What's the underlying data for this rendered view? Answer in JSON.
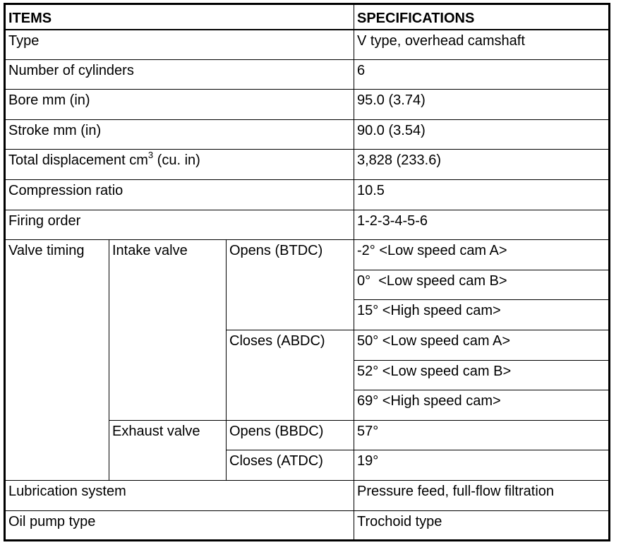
{
  "header": {
    "items": "ITEMS",
    "specifications": "SPECIFICATIONS"
  },
  "rows": [
    {
      "item": "Type",
      "spec": "V type, overhead camshaft"
    },
    {
      "item": "Number of cylinders",
      "spec": "6"
    },
    {
      "item": "Bore mm (in)",
      "spec": "95.0 (3.74)"
    },
    {
      "item": "Stroke mm (in)",
      "spec": "90.0 (3.54)"
    },
    {
      "item": "Total displacement cm",
      "item_sup": "3",
      "item_suffix": " (cu. in)",
      "spec": "3,828 (233.6)"
    },
    {
      "item": "Compression ratio",
      "spec": "10.5"
    },
    {
      "item": "Firing order",
      "spec": "1-2-3-4-5-6"
    }
  ],
  "valve_timing": {
    "label": "Valve timing",
    "intake": {
      "label": "Intake valve",
      "opens": {
        "label": "Opens (BTDC)",
        "values": [
          "-2° <Low speed cam A>",
          "0°  <Low speed cam B>",
          "15° <High speed cam>"
        ]
      },
      "closes": {
        "label": "Closes (ABDC)",
        "values": [
          "50° <Low speed cam A>",
          "52° <Low speed cam B>",
          "69° <High speed cam>"
        ]
      }
    },
    "exhaust": {
      "label": "Exhaust valve",
      "opens": {
        "label": "Opens (BBDC)",
        "value": "57°"
      },
      "closes": {
        "label": "Closes (ATDC)",
        "value": "19°"
      }
    }
  },
  "footer_rows": [
    {
      "item": "Lubrication system",
      "spec": "Pressure feed, full-flow filtration"
    },
    {
      "item": "Oil pump type",
      "spec": "Trochoid type"
    }
  ]
}
